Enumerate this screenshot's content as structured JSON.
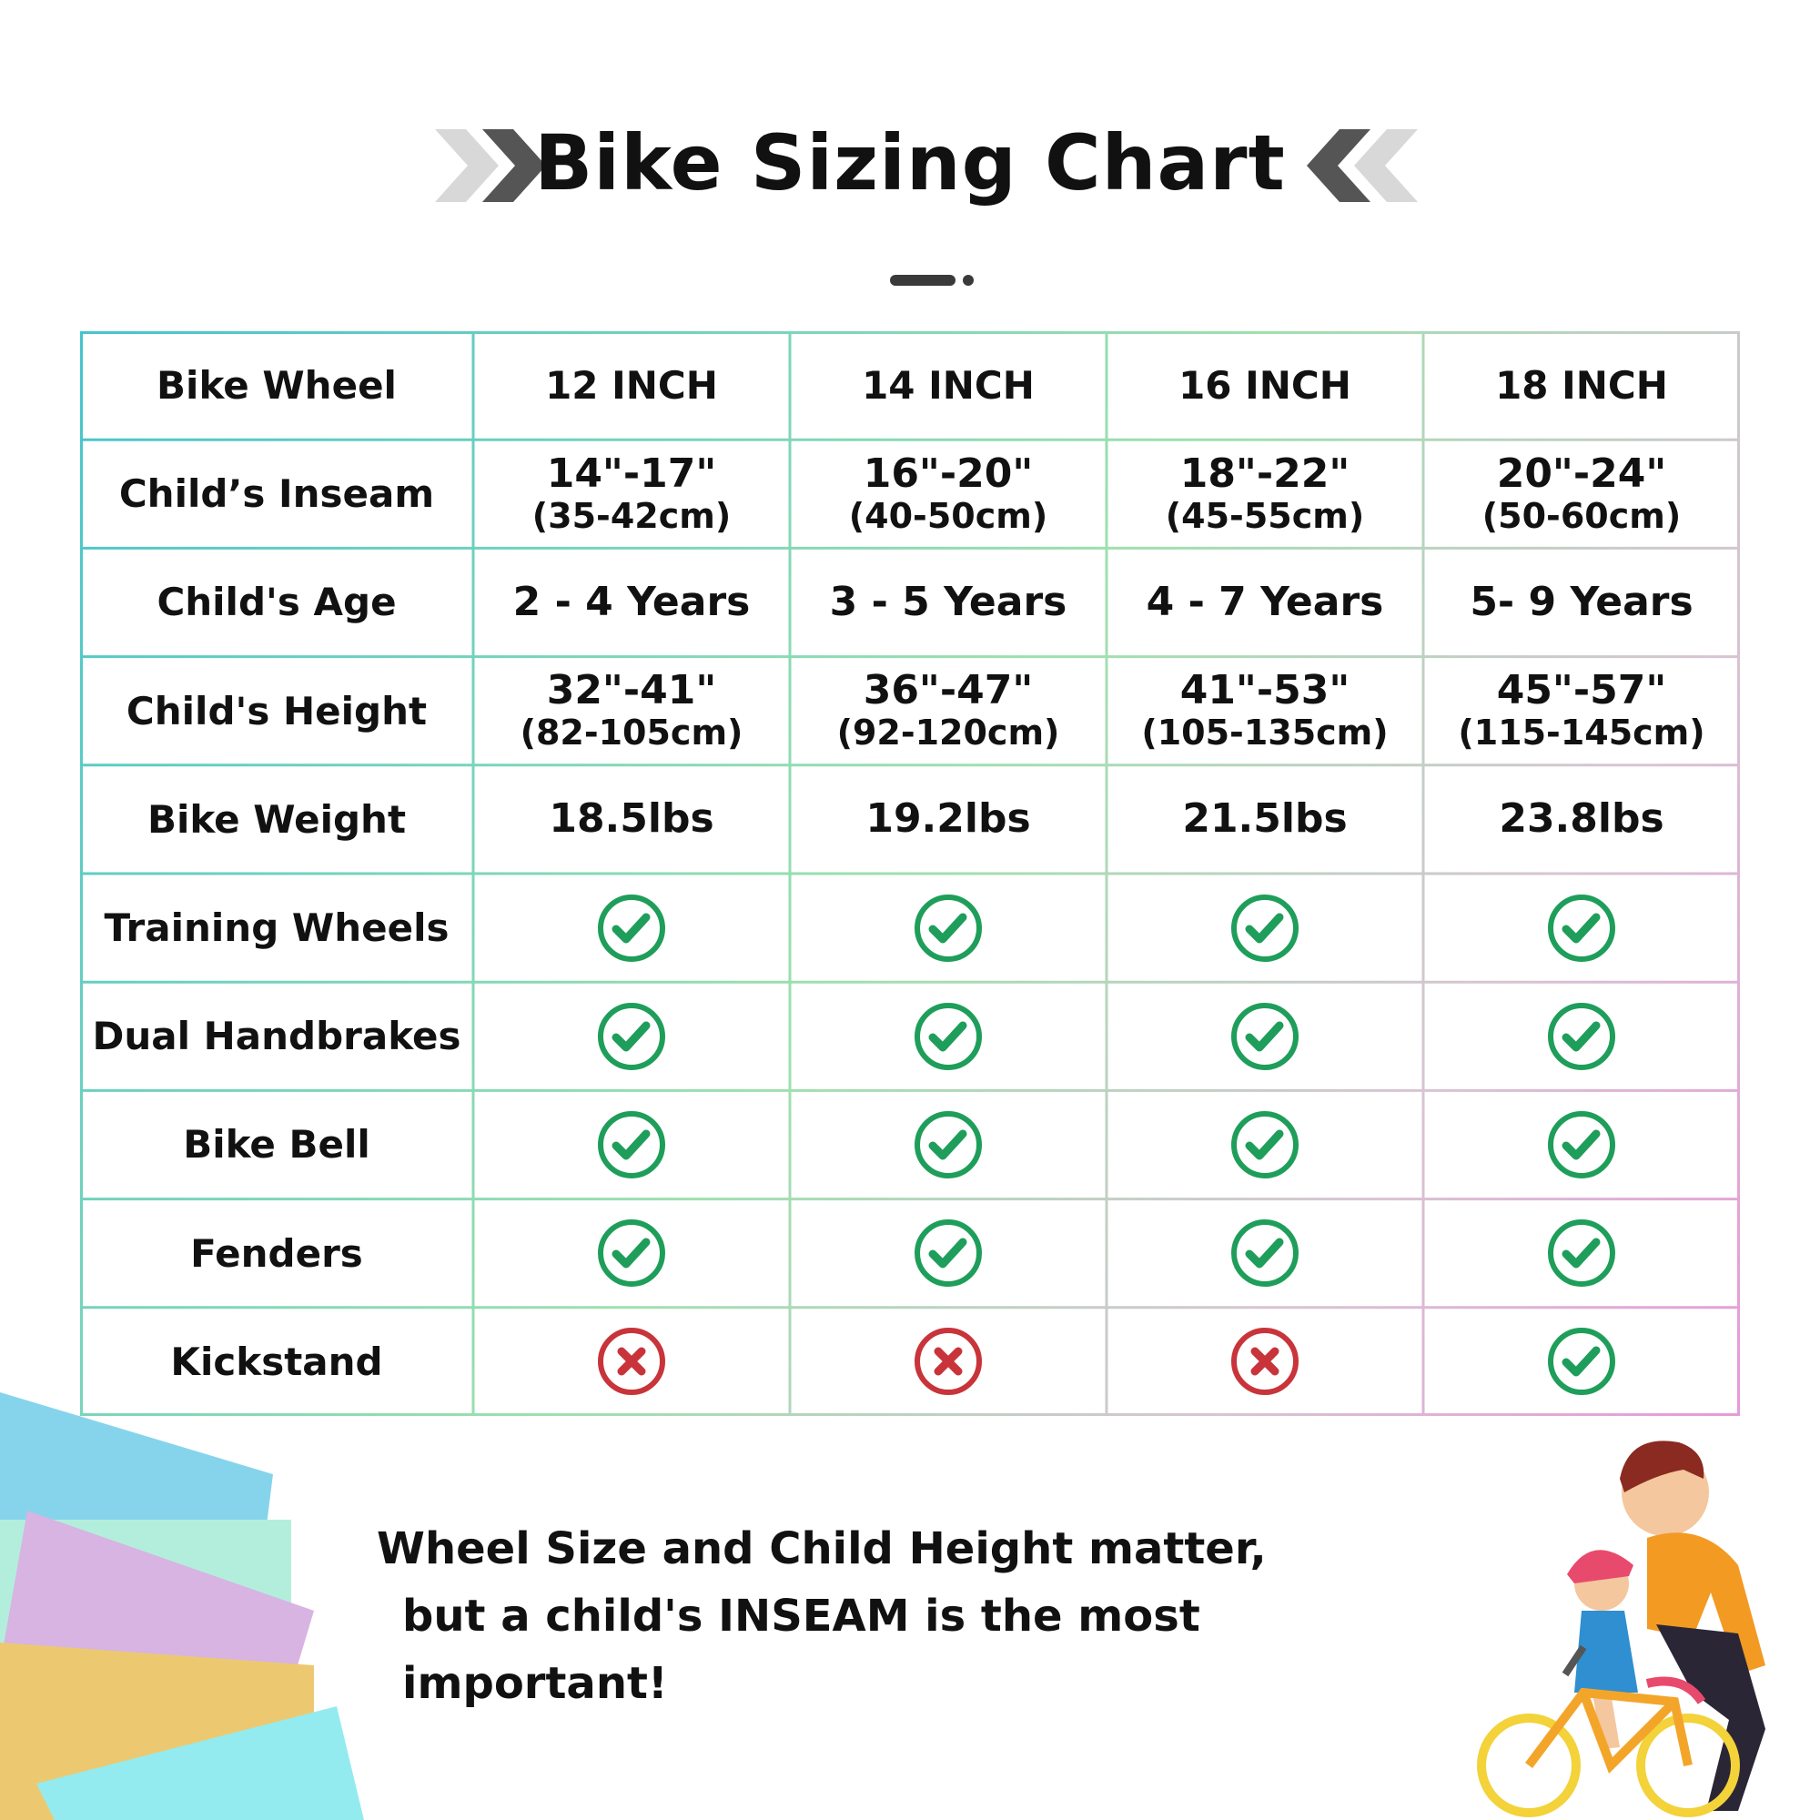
{
  "title": "Bike Sizing Chart",
  "table": {
    "header": [
      "Bike Wheel",
      "12 INCH",
      "14 INCH",
      "16 INCH",
      "18 INCH"
    ],
    "rows": [
      {
        "label": "Child’s Inseam",
        "cells": [
          {
            "main": "14\"-17\"",
            "sub": "(35-42cm)"
          },
          {
            "main": "16\"-20\"",
            "sub": "(40-50cm)"
          },
          {
            "main": "18\"-22\"",
            "sub": "(45-55cm)"
          },
          {
            "main": "20\"-24\"",
            "sub": "(50-60cm)"
          }
        ]
      },
      {
        "label": "Child's Age",
        "cells": [
          {
            "main": "2 - 4 Years"
          },
          {
            "main": "3 - 5 Years"
          },
          {
            "main": "4 - 7 Years"
          },
          {
            "main": "5- 9 Years"
          }
        ]
      },
      {
        "label": "Child's Height",
        "cells": [
          {
            "main": "32\"-41\"",
            "sub": "(82-105cm)"
          },
          {
            "main": "36\"-47\"",
            "sub": "(92-120cm)"
          },
          {
            "main": "41\"-53\"",
            "sub": "(105-135cm)"
          },
          {
            "main": "45\"-57\"",
            "sub": "(115-145cm)"
          }
        ]
      },
      {
        "label": "Bike Weight",
        "cells": [
          {
            "main": "18.5lbs"
          },
          {
            "main": "19.2lbs"
          },
          {
            "main": "21.5lbs"
          },
          {
            "main": "23.8lbs"
          }
        ]
      },
      {
        "label": "Training Wheels",
        "cells": [
          {
            "check": true
          },
          {
            "check": true
          },
          {
            "check": true
          },
          {
            "check": true
          }
        ]
      },
      {
        "label": "Dual Handbrakes",
        "cells": [
          {
            "check": true
          },
          {
            "check": true
          },
          {
            "check": true
          },
          {
            "check": true
          }
        ]
      },
      {
        "label": "Bike Bell",
        "cells": [
          {
            "check": true
          },
          {
            "check": true
          },
          {
            "check": true
          },
          {
            "check": true
          }
        ]
      },
      {
        "label": "Fenders",
        "cells": [
          {
            "check": true
          },
          {
            "check": true
          },
          {
            "check": true
          },
          {
            "check": true
          }
        ]
      },
      {
        "label": "Kickstand",
        "cells": [
          {
            "check": false
          },
          {
            "check": false
          },
          {
            "check": false
          },
          {
            "check": true
          }
        ]
      }
    ]
  },
  "footnote": {
    "line1": "Wheel Size and Child Height matter,",
    "line2": "but a child's INSEAM is the most important!"
  },
  "icons": {
    "check": "check-circle-icon",
    "cross": "x-circle-icon",
    "chevrons": "double-chevron-icon"
  },
  "colors": {
    "check": "#1e9e5a",
    "cross": "#c8343a",
    "grid_left": "#45c4cc",
    "grid_mid": "#9ee0ae",
    "grid_right": "#e69ad8",
    "chevron_light": "#d8d8d8",
    "chevron_dark": "#555555"
  }
}
